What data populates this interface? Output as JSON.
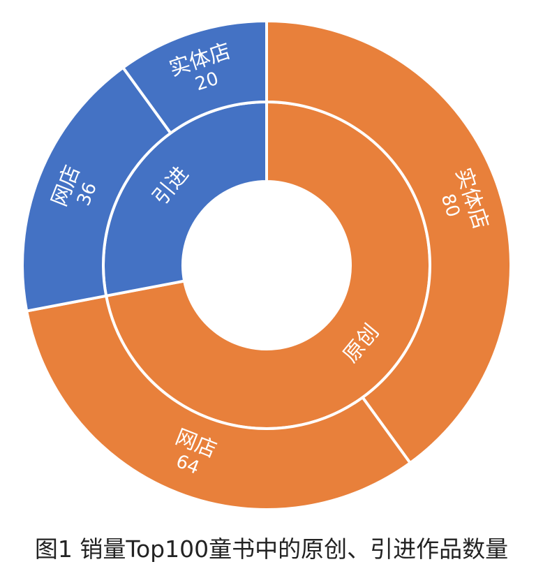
{
  "caption": "图1 销量Top100童书中的原创、引进作品数量",
  "colors": {
    "原创": "#E8803B",
    "引进": "#4472C4",
    "divider": "#ffffff"
  },
  "chart_data": {
    "type": "sunburst",
    "inner": [
      {
        "name": "引进",
        "value": 56
      },
      {
        "name": "原创",
        "value": 144
      }
    ],
    "outer": [
      {
        "name": "实体店",
        "parent": "原创",
        "value": 80
      },
      {
        "name": "网店",
        "parent": "原创",
        "value": 64
      },
      {
        "name": "网店",
        "parent": "引进",
        "value": 36
      },
      {
        "name": "实体店",
        "parent": "引进",
        "value": 20
      }
    ]
  }
}
